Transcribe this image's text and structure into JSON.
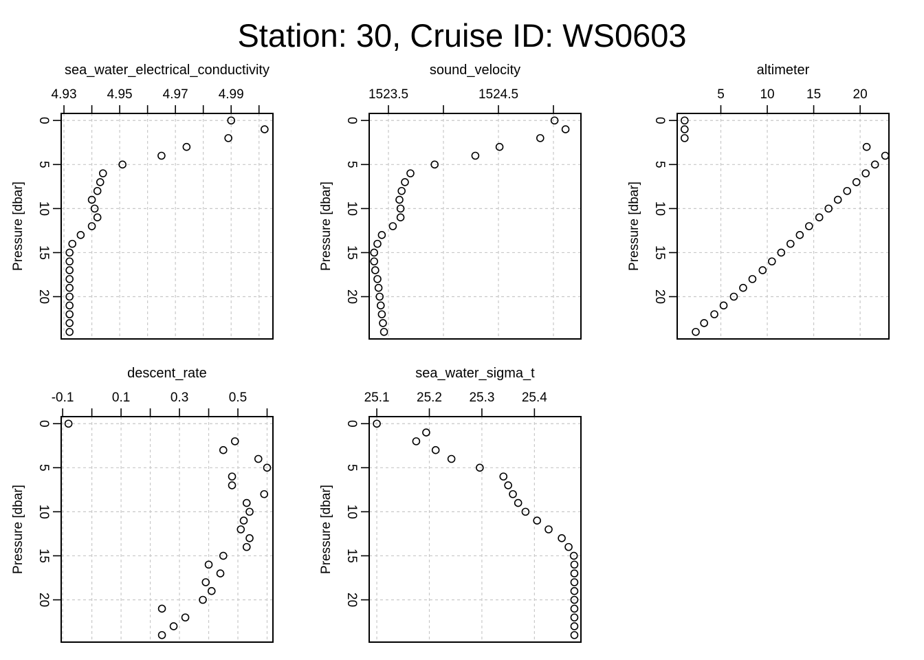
{
  "figure": {
    "title": "Station: 30, Cruise ID: WS0603"
  },
  "chart_data": [
    {
      "type": "scatter",
      "title": "sea_water_electrical_conductivity",
      "xlabel": "",
      "ylabel": "Pressure [dbar]",
      "x_ticks": [
        4.93,
        4.95,
        4.97,
        4.99
      ],
      "x_tick_labels": [
        "4.93",
        "4.95",
        "4.97",
        "4.99"
      ],
      "x_minor_ticks": [
        4.94,
        4.96,
        4.98,
        5.0
      ],
      "xlim": [
        4.929,
        5.005
      ],
      "y_ticks": [
        0,
        5,
        10,
        15,
        20
      ],
      "y_tick_labels": [
        "0",
        "5",
        "10",
        "15",
        "20"
      ],
      "ylim": [
        -0.8,
        24.8
      ],
      "y_reversed": true,
      "grid": true,
      "x_axis_position": "top",
      "pressure": [
        0,
        1,
        2,
        3,
        4,
        5,
        6,
        7,
        8,
        9,
        10,
        11,
        12,
        13,
        14,
        15,
        16,
        17,
        18,
        19,
        20,
        21,
        22,
        23,
        24
      ],
      "values": [
        4.99,
        5.002,
        4.989,
        4.974,
        4.965,
        4.951,
        4.944,
        4.943,
        4.942,
        4.94,
        4.941,
        4.942,
        4.94,
        4.936,
        4.933,
        4.932,
        4.932,
        4.932,
        4.932,
        4.932,
        4.932,
        4.932,
        4.932,
        4.932,
        4.932
      ]
    },
    {
      "type": "scatter",
      "title": "sound_velocity",
      "xlabel": "",
      "ylabel": "Pressure [dbar]",
      "x_ticks": [
        1523.5,
        1524.5
      ],
      "x_tick_labels": [
        "1523.5",
        "1524.5"
      ],
      "x_minor_ticks": [
        1524.0,
        1525.0
      ],
      "xlim": [
        1523.325,
        1525.25
      ],
      "y_ticks": [
        0,
        5,
        10,
        15,
        20
      ],
      "y_tick_labels": [
        "0",
        "5",
        "10",
        "15",
        "20"
      ],
      "ylim": [
        -0.8,
        24.8
      ],
      "y_reversed": true,
      "grid": true,
      "x_axis_position": "top",
      "pressure": [
        0,
        1,
        2,
        3,
        4,
        5,
        6,
        7,
        8,
        9,
        10,
        11,
        12,
        13,
        14,
        15,
        16,
        17,
        18,
        19,
        20,
        21,
        22,
        23,
        24
      ],
      "values": [
        1525.01,
        1525.11,
        1524.88,
        1524.51,
        1524.29,
        1523.92,
        1523.7,
        1523.65,
        1523.62,
        1523.6,
        1523.61,
        1523.61,
        1523.54,
        1523.44,
        1523.4,
        1523.37,
        1523.37,
        1523.38,
        1523.4,
        1523.41,
        1523.42,
        1523.43,
        1523.44,
        1523.45,
        1523.46
      ]
    },
    {
      "type": "scatter",
      "title": "altimeter",
      "xlabel": "",
      "ylabel": "Pressure [dbar]",
      "x_ticks": [
        5,
        10,
        15,
        20
      ],
      "x_tick_labels": [
        "5",
        "10",
        "15",
        "20"
      ],
      "x_minor_ticks": [],
      "xlim": [
        0.3,
        23.1
      ],
      "y_ticks": [
        0,
        5,
        10,
        15,
        20
      ],
      "y_tick_labels": [
        "0",
        "5",
        "10",
        "15",
        "20"
      ],
      "ylim": [
        -0.8,
        24.8
      ],
      "y_reversed": true,
      "grid": true,
      "x_axis_position": "top",
      "pressure": [
        0,
        1,
        2,
        3,
        4,
        5,
        6,
        7,
        8,
        9,
        10,
        11,
        12,
        13,
        14,
        15,
        16,
        17,
        18,
        19,
        20,
        21,
        22,
        23,
        24
      ],
      "values": [
        1.1,
        1.1,
        1.1,
        20.7,
        22.7,
        21.6,
        20.6,
        19.6,
        18.6,
        17.6,
        16.6,
        15.6,
        14.5,
        13.5,
        12.5,
        11.5,
        10.5,
        9.5,
        8.4,
        7.4,
        6.4,
        5.3,
        4.3,
        3.2,
        2.3
      ]
    },
    {
      "type": "scatter",
      "title": "descent_rate",
      "xlabel": "",
      "ylabel": "Pressure [dbar]",
      "x_ticks": [
        -0.1,
        0.1,
        0.3,
        0.5
      ],
      "x_tick_labels": [
        "-0.1",
        "0.1",
        "0.3",
        "0.5"
      ],
      "x_minor_ticks": [
        0.0,
        0.2,
        0.4,
        0.6
      ],
      "xlim": [
        -0.105,
        0.62
      ],
      "y_ticks": [
        0,
        5,
        10,
        15,
        20
      ],
      "y_tick_labels": [
        "0",
        "5",
        "10",
        "15",
        "20"
      ],
      "ylim": [
        -0.8,
        24.8
      ],
      "y_reversed": true,
      "grid": true,
      "x_axis_position": "top",
      "pressure": [
        0,
        2,
        3,
        4,
        5,
        6,
        7,
        8,
        9,
        10,
        11,
        12,
        13,
        14,
        15,
        16,
        17,
        18,
        19,
        20,
        21,
        22,
        23,
        24
      ],
      "values": [
        -0.08,
        0.49,
        0.45,
        0.57,
        0.6,
        0.48,
        0.48,
        0.59,
        0.53,
        0.54,
        0.52,
        0.51,
        0.54,
        0.53,
        0.45,
        0.4,
        0.44,
        0.39,
        0.41,
        0.38,
        0.24,
        0.32,
        0.28,
        0.24
      ]
    },
    {
      "type": "scatter",
      "title": "sea_water_sigma_t",
      "xlabel": "",
      "ylabel": "Pressure [dbar]",
      "x_ticks": [
        25.1,
        25.2,
        25.3,
        25.4
      ],
      "x_tick_labels": [
        "25.1",
        "25.2",
        "25.3",
        "25.4"
      ],
      "x_minor_ticks": [],
      "xlim": [
        25.0855,
        25.4885
      ],
      "y_ticks": [
        0,
        5,
        10,
        15,
        20
      ],
      "y_tick_labels": [
        "0",
        "5",
        "10",
        "15",
        "20"
      ],
      "ylim": [
        -0.8,
        24.8
      ],
      "y_reversed": true,
      "grid": true,
      "x_axis_position": "top",
      "pressure": [
        0,
        1,
        2,
        3,
        4,
        5,
        6,
        7,
        8,
        9,
        10,
        11,
        12,
        13,
        14,
        15,
        16,
        17,
        18,
        19,
        20,
        21,
        22,
        23,
        24
      ],
      "values": [
        25.1,
        25.194,
        25.175,
        25.212,
        25.242,
        25.296,
        25.341,
        25.35,
        25.359,
        25.369,
        25.383,
        25.405,
        25.427,
        25.452,
        25.465,
        25.475,
        25.476,
        25.476,
        25.476,
        25.476,
        25.476,
        25.476,
        25.476,
        25.476,
        25.476
      ]
    }
  ]
}
